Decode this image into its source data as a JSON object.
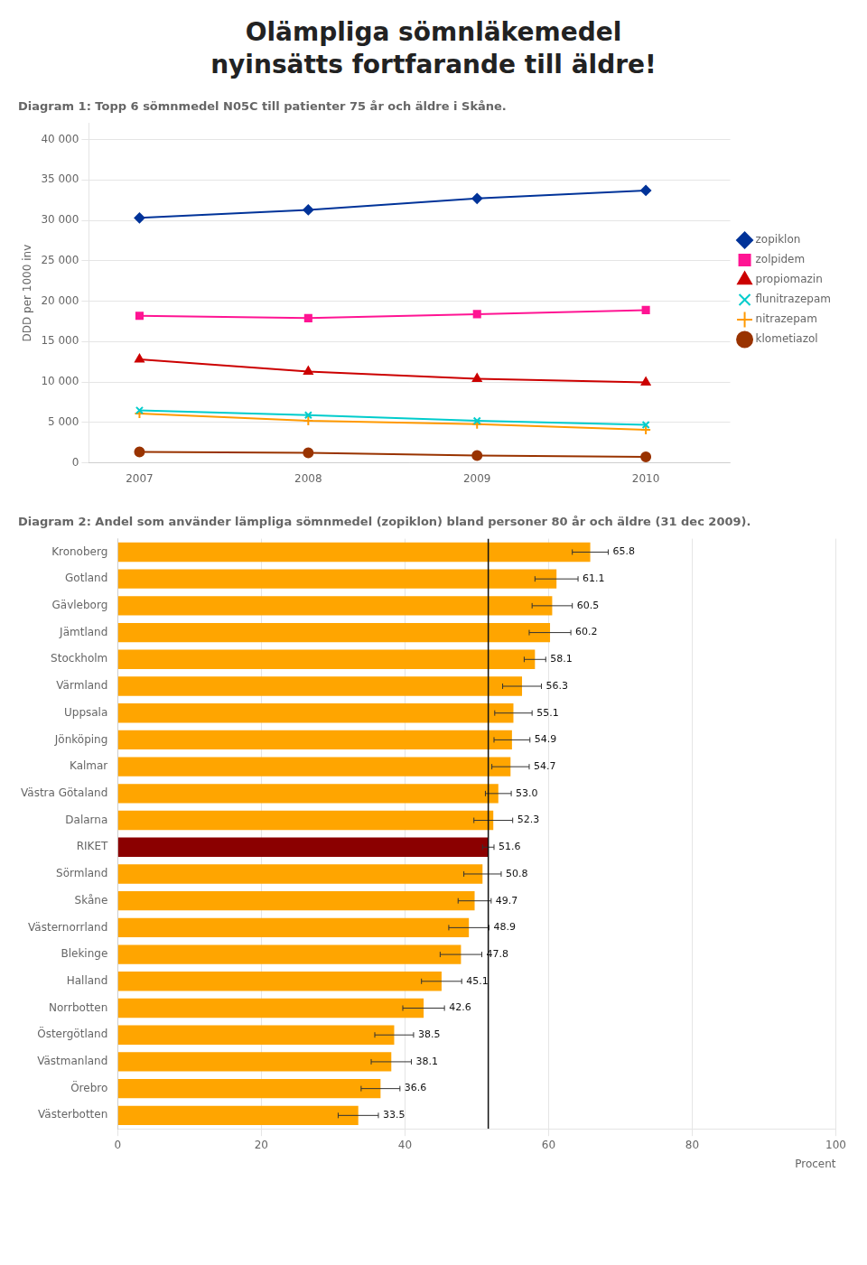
{
  "title": [
    "Olämpliga sömnläkemedel",
    "nyinsätts fortfarande till äldre!"
  ],
  "chart_data": [
    {
      "type": "line",
      "title": "Diagram 1: Topp 6 sömnmedel N05C till patienter 75 år och äldre i Skåne.",
      "y_label": "DDD per 1000 inv",
      "x": [
        2007,
        2008,
        2009,
        2010
      ],
      "series": [
        {
          "name": "zopiklon",
          "color": "#003399",
          "marker": "diamond",
          "values": [
            30300,
            31300,
            32700,
            33700
          ]
        },
        {
          "name": "zolpidem",
          "color": "#FF1493",
          "marker": "square",
          "values": [
            18200,
            17900,
            18400,
            18900
          ]
        },
        {
          "name": "propiomazin",
          "color": "#CC0000",
          "marker": "triangle",
          "values": [
            12800,
            11300,
            10400,
            9950
          ]
        },
        {
          "name": "flunitrazepam",
          "color": "#00CCCC",
          "marker": "x",
          "values": [
            6500,
            5900,
            5200,
            4700
          ]
        },
        {
          "name": "nitrazepam",
          "color": "#FF9900",
          "marker": "plus",
          "values": [
            6100,
            5200,
            4800,
            4100
          ]
        },
        {
          "name": "klometiazol",
          "color": "#993300",
          "marker": "circle",
          "values": [
            1350,
            1250,
            900,
            750
          ]
        }
      ],
      "xlim": [
        2006.7,
        2010.5
      ],
      "xticks": [
        2007,
        2008,
        2009,
        2010
      ],
      "ylim": [
        0,
        42000
      ],
      "yticks": [
        0,
        {
          "value": 5000,
          "label": "5 000"
        },
        {
          "value": 10000,
          "label": "10 000"
        },
        {
          "value": 15000,
          "label": "15 000"
        },
        {
          "value": 20000,
          "label": "20 000"
        },
        {
          "value": 25000,
          "label": "25 000"
        },
        {
          "value": 30000,
          "label": "30 000"
        },
        {
          "value": 35000,
          "label": "35 000"
        },
        {
          "value": 40000,
          "label": "40 000"
        }
      ],
      "grid": "y",
      "legend": "right"
    },
    {
      "type": "bar",
      "orientation": "horizontal",
      "title": "Diagram 2: Andel som använder lämpliga sömnmedel (zopiklon) bland personer 80 år och äldre (31 dec 2009).",
      "x_label": "Procent",
      "categories": [
        "Kronoberg",
        "Gotland",
        "Gävleborg",
        "Jämtland",
        "Stockholm",
        "Värmland",
        "Uppsala",
        "Jönköping",
        "Kalmar",
        "Västra Götaland",
        "Dalarna",
        "RIKET",
        "Sörmland",
        "Skåne",
        "Västernorrland",
        "Blekinge",
        "Halland",
        "Norrbotten",
        "Östergötland",
        "Västmanland",
        "Örebro",
        "Västerbotten"
      ],
      "values": [
        65.8,
        61.1,
        60.5,
        60.2,
        58.1,
        56.3,
        55.1,
        54.9,
        54.7,
        53.0,
        52.3,
        51.6,
        50.8,
        49.7,
        48.9,
        47.8,
        45.1,
        42.6,
        38.5,
        38.1,
        36.6,
        33.5
      ],
      "value_labels": [
        "65.8",
        "61.1",
        "60.5",
        "60.2",
        "58.1",
        "56.3",
        "55.1",
        "54.9",
        "54.7",
        "53.0",
        "52.3",
        "51.6",
        "50.8",
        "49.7",
        "48.9",
        "47.8",
        "45.1",
        "42.6",
        "38.5",
        "38.1",
        "36.6",
        "33.5"
      ],
      "errors": [
        2.5,
        3.0,
        2.8,
        2.9,
        1.5,
        2.7,
        2.6,
        2.5,
        2.6,
        1.8,
        2.7,
        0.8,
        2.6,
        2.3,
        2.8,
        2.9,
        2.8,
        2.9,
        2.7,
        2.8,
        2.7,
        2.8
      ],
      "colors": [
        "#FFA500",
        "#FFA500",
        "#FFA500",
        "#FFA500",
        "#FFA500",
        "#FFA500",
        "#FFA500",
        "#FFA500",
        "#FFA500",
        "#FFA500",
        "#FFA500",
        "#8B0000",
        "#FFA500",
        "#FFA500",
        "#FFA500",
        "#FFA500",
        "#FFA500",
        "#FFA500",
        "#FFA500",
        "#FFA500",
        "#FFA500",
        "#FFA500"
      ],
      "reference_line": 51.6,
      "xlim": [
        0,
        100
      ],
      "xticks": [
        0,
        20,
        40,
        60,
        80,
        100
      ],
      "grid": "x",
      "data_labels": true
    }
  ]
}
